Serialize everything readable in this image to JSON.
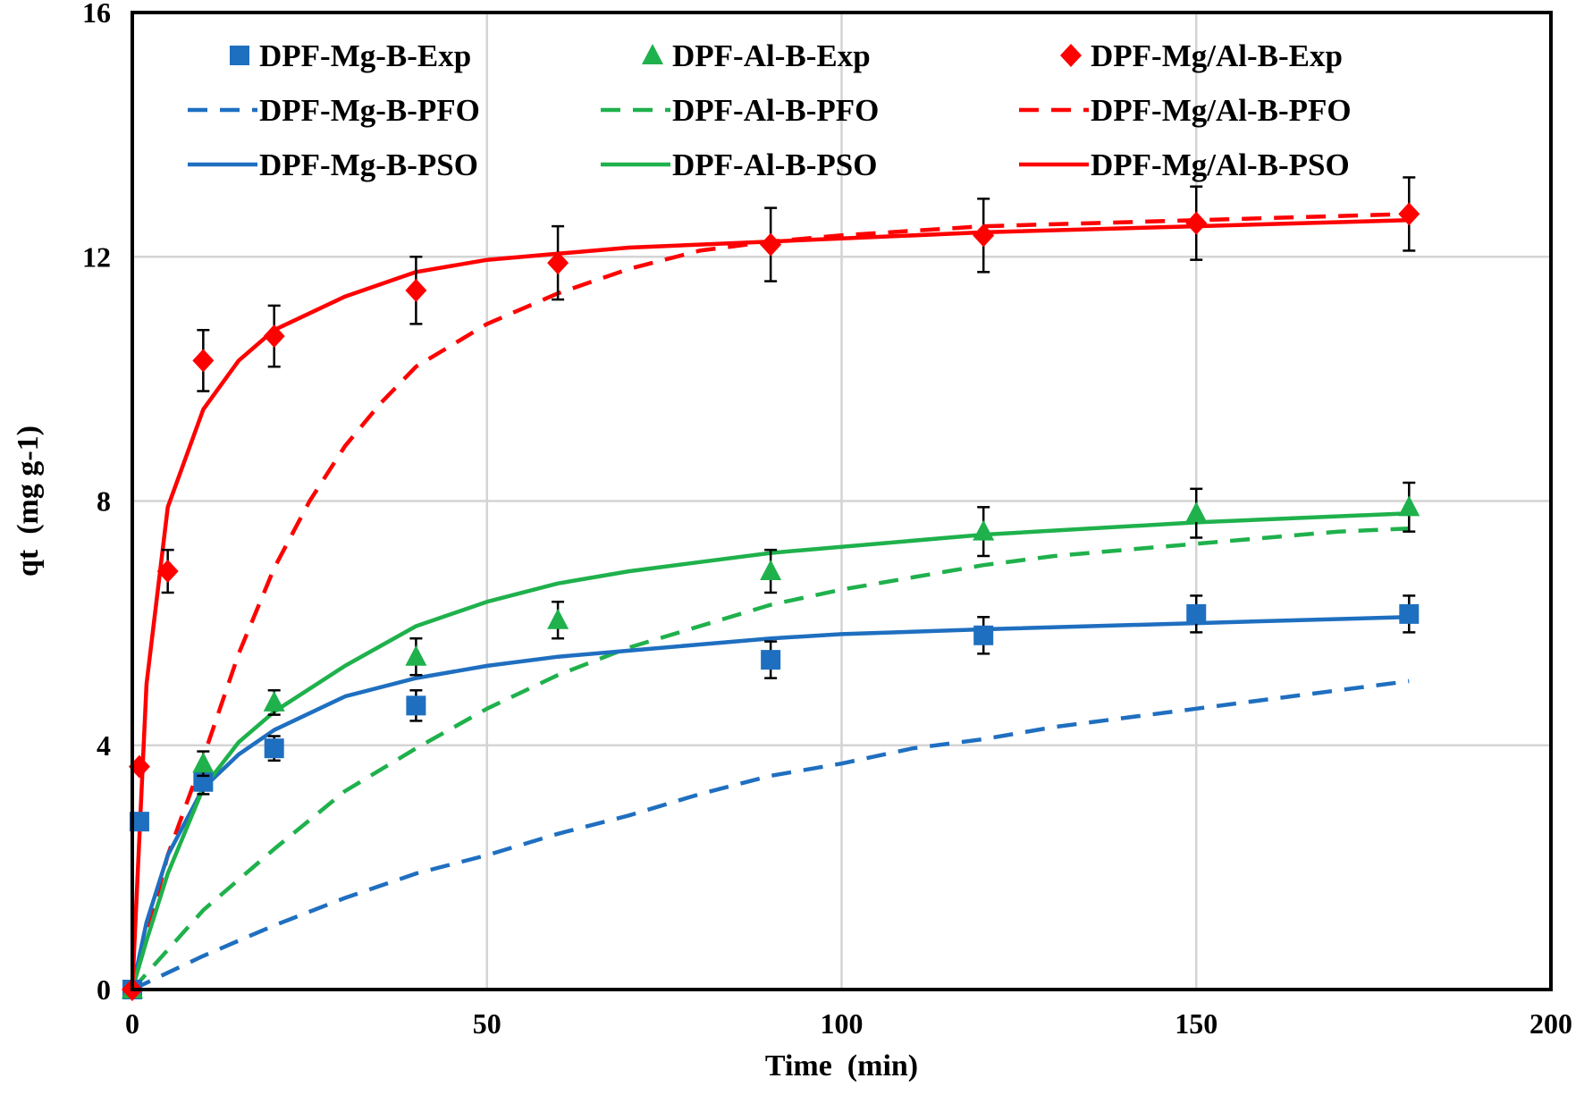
{
  "chart_data": {
    "type": "scatter",
    "xlabel": "Time  (min)",
    "ylabel": "qt  (mg g-1)",
    "xlim": [
      0,
      200
    ],
    "ylim": [
      0,
      16
    ],
    "xticks": [
      0,
      50,
      100,
      150,
      200
    ],
    "yticks": [
      0,
      4,
      8,
      12,
      16
    ],
    "grid": true,
    "legend_position": "top, 3 columns x 3 rows",
    "colors": {
      "mg": "#1f6fc0",
      "al": "#1fb14c",
      "mgal": "#ff0000"
    },
    "series": [
      {
        "name": "DPF-Mg-B-Exp",
        "kind": "markers",
        "marker": "square",
        "color": "#1f6fc0",
        "x": [
          0,
          1,
          10,
          20,
          40,
          90,
          120,
          150,
          180
        ],
        "y": [
          0,
          2.75,
          3.4,
          3.95,
          4.65,
          5.4,
          5.8,
          6.15,
          6.15
        ],
        "err": [
          0,
          0,
          0.2,
          0.2,
          0.25,
          0.3,
          0.3,
          0.3,
          0.3
        ]
      },
      {
        "name": "DPF-Al-B-Exp",
        "kind": "markers",
        "marker": "triangle",
        "color": "#1fb14c",
        "x": [
          0,
          10,
          20,
          40,
          60,
          90,
          120,
          150,
          180
        ],
        "y": [
          0,
          3.7,
          4.7,
          5.45,
          6.05,
          6.85,
          7.5,
          7.8,
          7.9
        ],
        "err": [
          0,
          0.2,
          0.2,
          0.3,
          0.3,
          0.35,
          0.4,
          0.4,
          0.4
        ]
      },
      {
        "name": "DPF-Mg/Al-B-Exp",
        "kind": "markers",
        "marker": "diamond",
        "color": "#ff0000",
        "x": [
          0,
          1,
          5,
          10,
          20,
          40,
          60,
          90,
          120,
          150,
          180
        ],
        "y": [
          0,
          3.65,
          6.85,
          10.3,
          10.7,
          11.45,
          11.9,
          12.2,
          12.35,
          12.55,
          12.7
        ],
        "err": [
          0,
          0,
          0.35,
          0.5,
          0.5,
          0.55,
          0.6,
          0.6,
          0.6,
          0.6,
          0.6
        ]
      },
      {
        "name": "DPF-Mg-B-PFO",
        "kind": "line",
        "dash": true,
        "color": "#1f6fc0",
        "x": [
          0,
          10,
          20,
          30,
          40,
          50,
          60,
          70,
          80,
          90,
          100,
          110,
          120,
          130,
          140,
          150,
          160,
          170,
          180
        ],
        "y": [
          0,
          0.55,
          1.05,
          1.5,
          1.9,
          2.2,
          2.55,
          2.85,
          3.2,
          3.5,
          3.7,
          3.95,
          4.1,
          4.3,
          4.45,
          4.6,
          4.75,
          4.9,
          5.05
        ]
      },
      {
        "name": "DPF-Al-B-PFO",
        "kind": "line",
        "dash": true,
        "color": "#1fb14c",
        "x": [
          0,
          10,
          20,
          30,
          40,
          50,
          60,
          70,
          80,
          90,
          100,
          110,
          120,
          130,
          140,
          150,
          160,
          170,
          180
        ],
        "y": [
          0,
          1.3,
          2.3,
          3.25,
          3.95,
          4.6,
          5.15,
          5.6,
          5.95,
          6.3,
          6.55,
          6.75,
          6.95,
          7.1,
          7.2,
          7.3,
          7.4,
          7.5,
          7.55
        ]
      },
      {
        "name": "DPF-Mg/Al-B-PFO",
        "kind": "line",
        "dash": true,
        "color": "#ff0000",
        "x": [
          0,
          5,
          10,
          15,
          20,
          25,
          30,
          35,
          40,
          50,
          60,
          70,
          80,
          90,
          100,
          120,
          150,
          180
        ],
        "y": [
          0,
          2.2,
          3.8,
          5.5,
          6.9,
          8.0,
          8.9,
          9.6,
          10.2,
          10.9,
          11.4,
          11.8,
          12.1,
          12.25,
          12.35,
          12.5,
          12.6,
          12.7
        ]
      },
      {
        "name": "DPF-Mg-B-PSO",
        "kind": "line",
        "dash": false,
        "color": "#1f6fc0",
        "x": [
          0,
          2,
          5,
          10,
          15,
          20,
          30,
          40,
          50,
          60,
          70,
          80,
          90,
          100,
          120,
          150,
          180
        ],
        "y": [
          0,
          1.1,
          2.2,
          3.3,
          3.85,
          4.25,
          4.8,
          5.1,
          5.3,
          5.45,
          5.55,
          5.65,
          5.75,
          5.82,
          5.9,
          6.0,
          6.1
        ]
      },
      {
        "name": "DPF-Al-B-PSO",
        "kind": "line",
        "dash": false,
        "color": "#1fb14c",
        "x": [
          0,
          2,
          5,
          10,
          15,
          20,
          30,
          40,
          50,
          60,
          70,
          80,
          90,
          100,
          120,
          150,
          180
        ],
        "y": [
          0,
          0.8,
          1.9,
          3.3,
          4.05,
          4.55,
          5.3,
          5.95,
          6.35,
          6.65,
          6.85,
          7.0,
          7.15,
          7.25,
          7.45,
          7.65,
          7.8
        ]
      },
      {
        "name": "DPF-Mg/Al-B-PSO",
        "kind": "line",
        "dash": false,
        "color": "#ff0000",
        "x": [
          0,
          2,
          5,
          10,
          15,
          20,
          30,
          40,
          50,
          60,
          70,
          80,
          90,
          100,
          120,
          150,
          180
        ],
        "y": [
          0,
          5.0,
          7.9,
          9.5,
          10.3,
          10.8,
          11.35,
          11.75,
          11.95,
          12.05,
          12.15,
          12.2,
          12.25,
          12.3,
          12.4,
          12.5,
          12.6
        ]
      }
    ]
  }
}
